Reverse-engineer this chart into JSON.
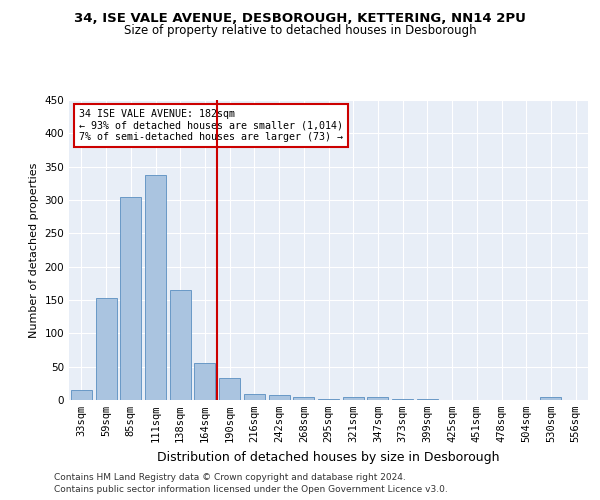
{
  "title1": "34, ISE VALE AVENUE, DESBOROUGH, KETTERING, NN14 2PU",
  "title2": "Size of property relative to detached houses in Desborough",
  "xlabel": "Distribution of detached houses by size in Desborough",
  "ylabel": "Number of detached properties",
  "categories": [
    "33sqm",
    "59sqm",
    "85sqm",
    "111sqm",
    "138sqm",
    "164sqm",
    "190sqm",
    "216sqm",
    "242sqm",
    "268sqm",
    "295sqm",
    "321sqm",
    "347sqm",
    "373sqm",
    "399sqm",
    "425sqm",
    "451sqm",
    "478sqm",
    "504sqm",
    "530sqm",
    "556sqm"
  ],
  "values": [
    15,
    153,
    305,
    338,
    165,
    55,
    33,
    9,
    7,
    5,
    2,
    5,
    5,
    2,
    2,
    0,
    0,
    0,
    0,
    5,
    0
  ],
  "bar_color": "#aac4e0",
  "bar_edge_color": "#5a8fc0",
  "annotation_text": "34 ISE VALE AVENUE: 182sqm\n← 93% of detached houses are smaller (1,014)\n7% of semi-detached houses are larger (73) →",
  "annotation_box_color": "#ffffff",
  "annotation_box_edge": "#cc0000",
  "red_line_color": "#cc0000",
  "footnote1": "Contains HM Land Registry data © Crown copyright and database right 2024.",
  "footnote2": "Contains public sector information licensed under the Open Government Licence v3.0.",
  "ylim": [
    0,
    450
  ],
  "yticks": [
    0,
    50,
    100,
    150,
    200,
    250,
    300,
    350,
    400,
    450
  ],
  "bg_color": "#e8eef7",
  "fig_bg": "#ffffff",
  "title1_fontsize": 9.5,
  "title2_fontsize": 8.5,
  "axis_label_fontsize": 8,
  "tick_fontsize": 7.5
}
